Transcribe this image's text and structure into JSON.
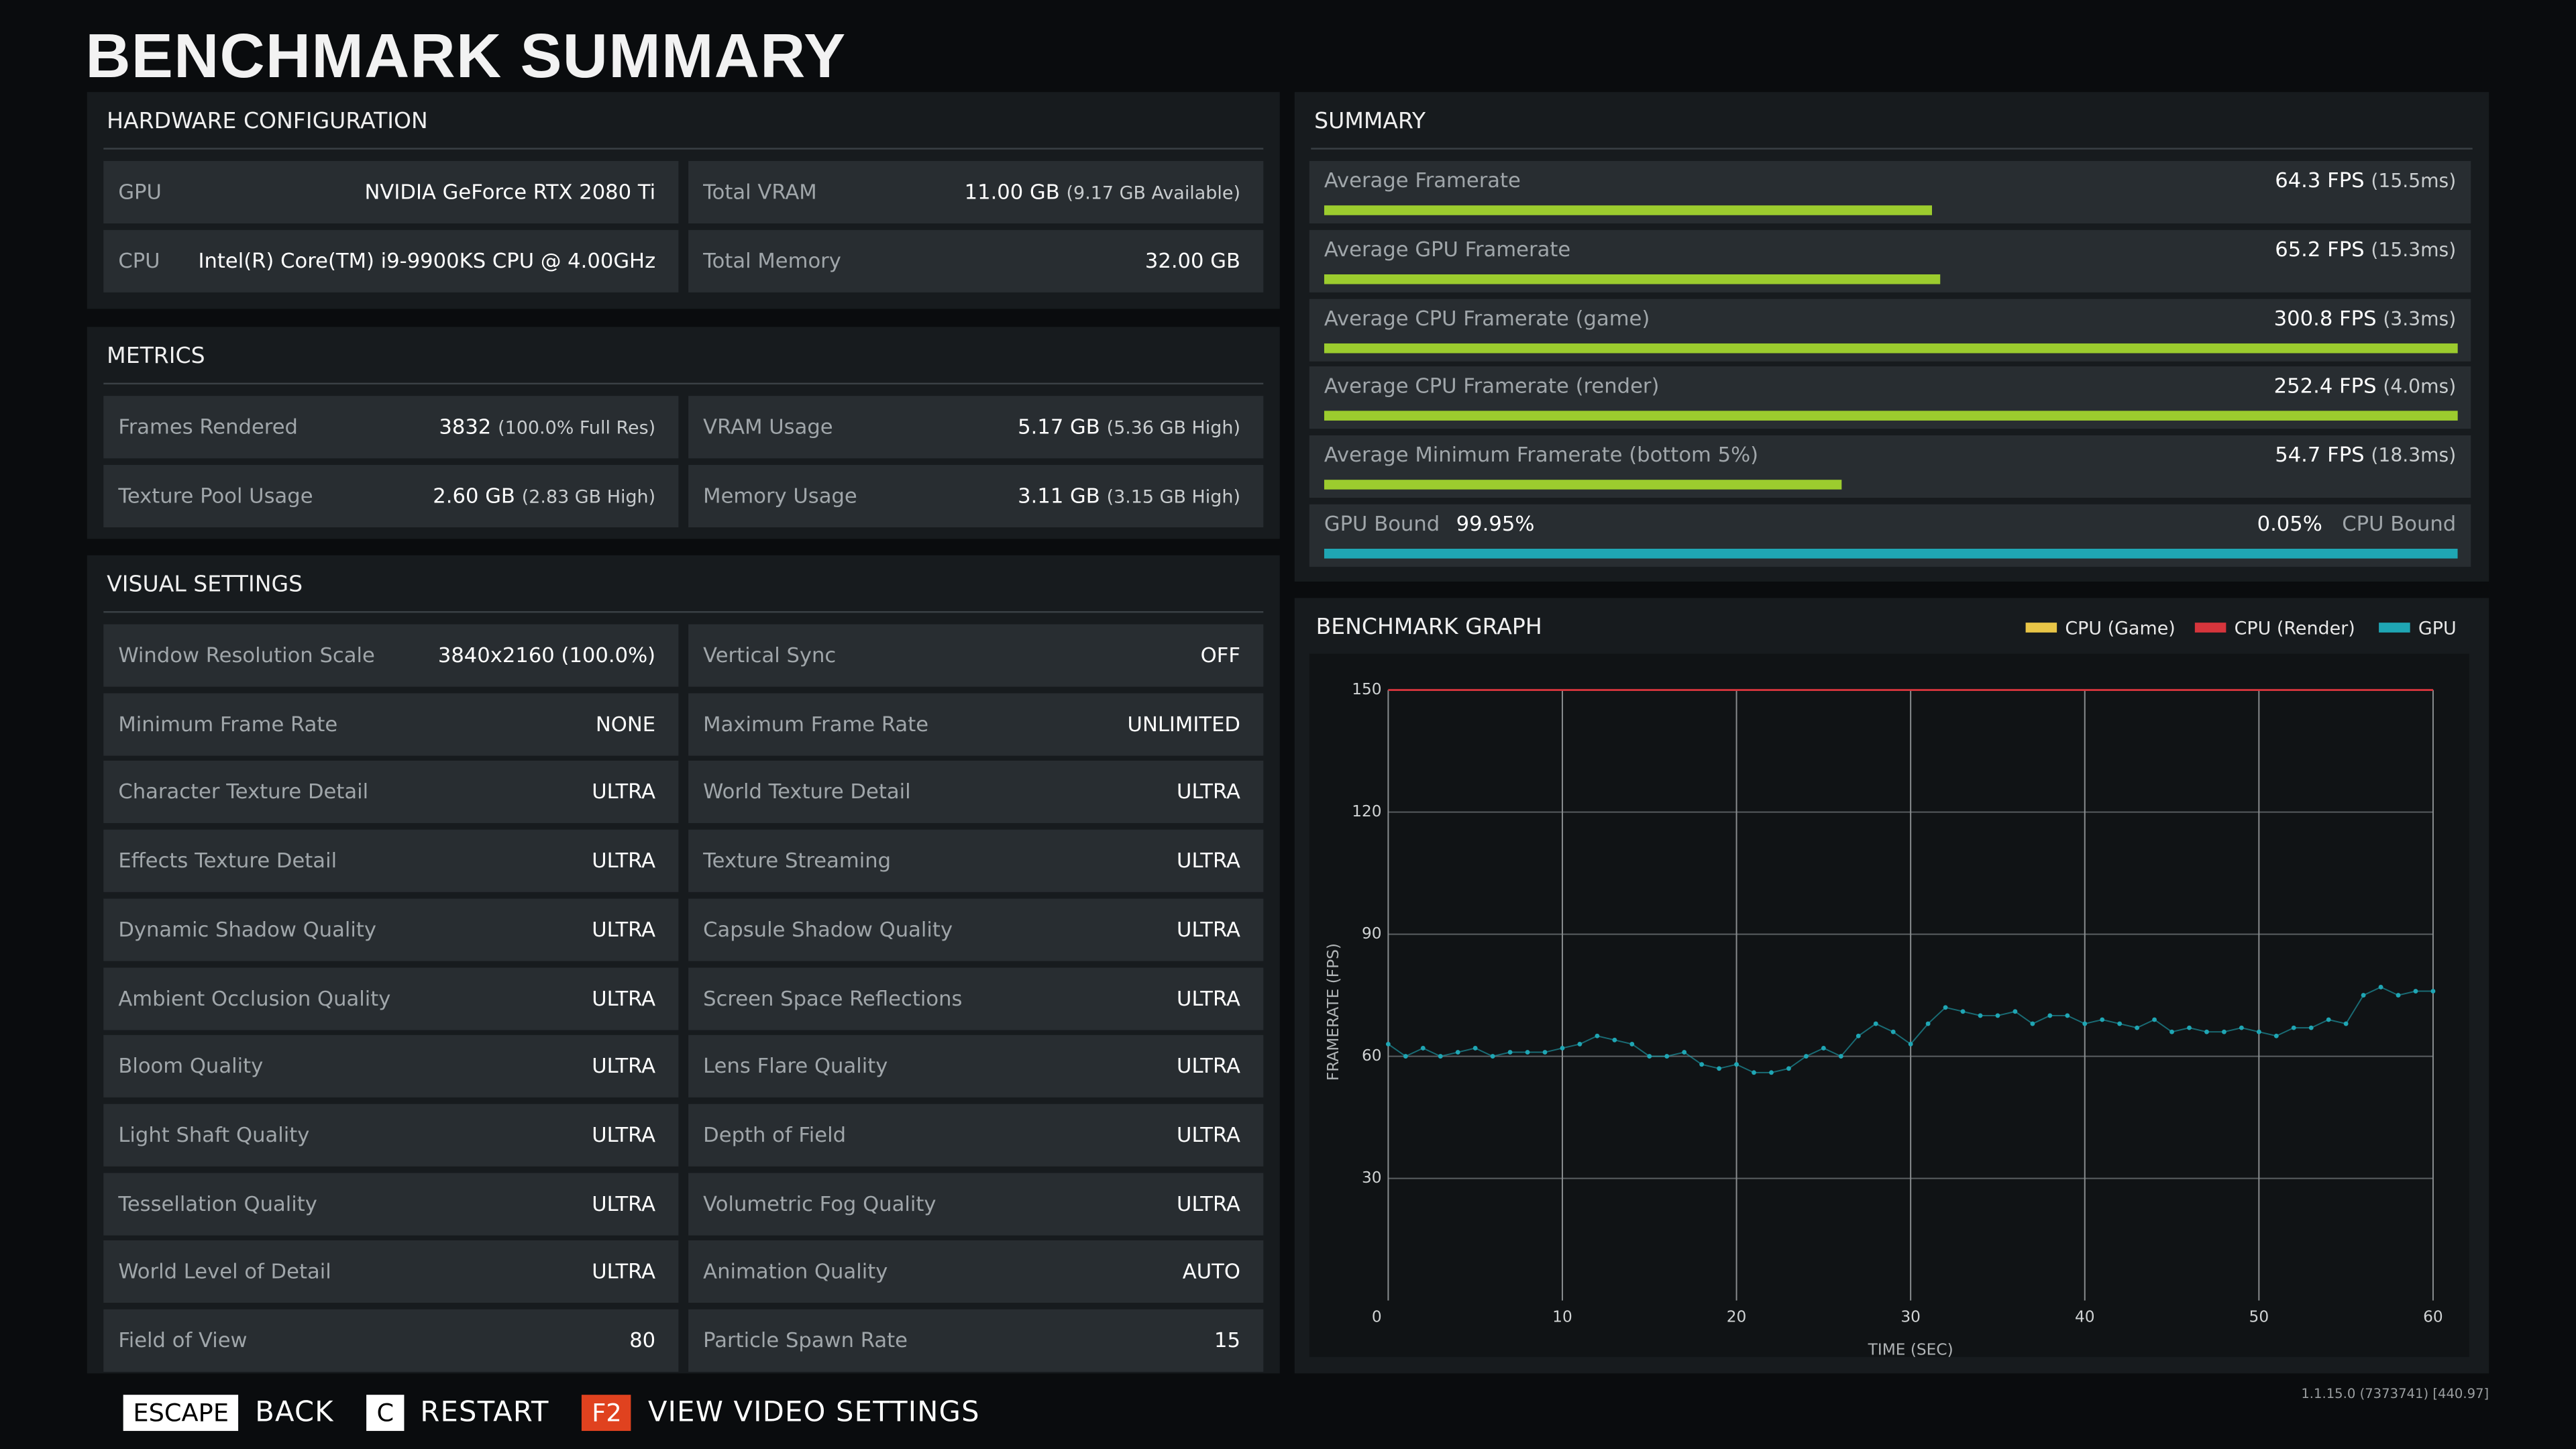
{
  "header": {
    "title": "BENCHMARK SUMMARY"
  },
  "hardware": {
    "title": "HARDWARE CONFIGURATION",
    "rows": [
      [
        {
          "label": "GPU",
          "value": "NVIDIA GeForce RTX 2080 Ti"
        },
        {
          "label": "Total VRAM",
          "value": "11.00 GB",
          "note": "(9.17 GB Available)"
        }
      ],
      [
        {
          "label": "CPU",
          "value": "Intel(R) Core(TM) i9-9900KS CPU @ 4.00GHz"
        },
        {
          "label": "Total Memory",
          "value": "32.00 GB"
        }
      ]
    ]
  },
  "metrics": {
    "title": "METRICS",
    "rows": [
      [
        {
          "label": "Frames Rendered",
          "value": "3832",
          "note": "(100.0% Full Res)"
        },
        {
          "label": "VRAM Usage",
          "value": "5.17 GB",
          "note": "(5.36 GB High)"
        }
      ],
      [
        {
          "label": "Texture Pool Usage",
          "value": "2.60 GB",
          "note": "(2.83 GB High)"
        },
        {
          "label": "Memory Usage",
          "value": "3.11 GB",
          "note": "(3.15 GB High)"
        }
      ]
    ]
  },
  "visual_settings": {
    "title": "VISUAL SETTINGS",
    "rows": [
      [
        {
          "label": "Window Resolution Scale",
          "value": "3840x2160 (100.0%)"
        },
        {
          "label": "Vertical Sync",
          "value": "OFF"
        }
      ],
      [
        {
          "label": "Minimum Frame Rate",
          "value": "NONE"
        },
        {
          "label": "Maximum Frame Rate",
          "value": "UNLIMITED"
        }
      ],
      [
        {
          "label": "Character Texture Detail",
          "value": "ULTRA"
        },
        {
          "label": "World Texture Detail",
          "value": "ULTRA"
        }
      ],
      [
        {
          "label": "Effects Texture Detail",
          "value": "ULTRA"
        },
        {
          "label": "Texture Streaming",
          "value": "ULTRA"
        }
      ],
      [
        {
          "label": "Dynamic Shadow Quality",
          "value": "ULTRA"
        },
        {
          "label": "Capsule Shadow Quality",
          "value": "ULTRA"
        }
      ],
      [
        {
          "label": "Ambient Occlusion Quality",
          "value": "ULTRA"
        },
        {
          "label": "Screen Space Reflections",
          "value": "ULTRA"
        }
      ],
      [
        {
          "label": "Bloom Quality",
          "value": "ULTRA"
        },
        {
          "label": "Lens Flare Quality",
          "value": "ULTRA"
        }
      ],
      [
        {
          "label": "Light Shaft Quality",
          "value": "ULTRA"
        },
        {
          "label": "Depth of Field",
          "value": "ULTRA"
        }
      ],
      [
        {
          "label": "Tessellation Quality",
          "value": "ULTRA"
        },
        {
          "label": "Volumetric Fog Quality",
          "value": "ULTRA"
        }
      ],
      [
        {
          "label": "World Level of Detail",
          "value": "ULTRA"
        },
        {
          "label": "Animation Quality",
          "value": "AUTO"
        }
      ],
      [
        {
          "label": "Field of View",
          "value": "80"
        },
        {
          "label": "Particle Spawn Rate",
          "value": "15"
        }
      ]
    ]
  },
  "summary": {
    "title": "SUMMARY",
    "bar_max": 120,
    "bar_color": "#9ccc2e",
    "items": [
      {
        "label": "Average Framerate",
        "fps": 64.3,
        "fps_label": "64.3 FPS",
        "ms_label": "(15.5ms)"
      },
      {
        "label": "Average GPU Framerate",
        "fps": 65.2,
        "fps_label": "65.2 FPS",
        "ms_label": "(15.3ms)"
      },
      {
        "label": "Average CPU Framerate (game)",
        "fps": 300.8,
        "fps_label": "300.8 FPS",
        "ms_label": "(3.3ms)"
      },
      {
        "label": "Average CPU Framerate (render)",
        "fps": 252.4,
        "fps_label": "252.4 FPS",
        "ms_label": "(4.0ms)"
      },
      {
        "label": "Average Minimum Framerate (bottom 5%)",
        "fps": 54.7,
        "fps_label": "54.7 FPS",
        "ms_label": "(18.3ms)"
      }
    ],
    "bound": {
      "gpu_label": "GPU Bound",
      "gpu_value": 99.95,
      "gpu_value_label": "99.95%",
      "cpu_value": 0.05,
      "cpu_value_label": "0.05%",
      "cpu_label": "CPU Bound",
      "color": "#1fa6b4"
    }
  },
  "chart_data": {
    "type": "scatter",
    "title": "BENCHMARK GRAPH",
    "xlabel": "TIME (SEC)",
    "ylabel": "FRAMERATE (FPS)",
    "x": [
      0,
      1,
      2,
      3,
      4,
      5,
      6,
      7,
      8,
      9,
      10,
      11,
      12,
      13,
      14,
      15,
      16,
      17,
      18,
      19,
      20,
      21,
      22,
      23,
      24,
      25,
      26,
      27,
      28,
      29,
      30,
      31,
      32,
      33,
      34,
      35,
      36,
      37,
      38,
      39,
      40,
      41,
      42,
      43,
      44,
      45,
      46,
      47,
      48,
      49,
      50,
      51,
      52,
      53,
      54,
      55,
      56,
      57,
      58,
      59,
      60
    ],
    "series": [
      {
        "name": "CPU (Game)",
        "color": "#e8c547",
        "values": [
          null,
          null,
          null,
          null,
          null,
          null,
          null,
          null,
          null,
          null,
          null,
          null,
          null,
          null,
          null,
          null,
          null,
          null,
          null,
          null,
          null,
          null,
          null,
          null,
          null,
          null,
          null,
          null,
          null,
          null,
          null,
          null,
          null,
          null,
          null,
          null,
          null,
          null,
          null,
          null,
          null,
          null,
          null,
          null,
          null,
          null,
          null,
          null,
          null,
          null,
          null,
          null,
          null,
          null,
          null,
          null,
          null,
          null,
          null,
          null,
          null
        ]
      },
      {
        "name": "CPU (Render)",
        "color": "#d6353c",
        "values": [
          150,
          150,
          150,
          150,
          150,
          150,
          150,
          150,
          150,
          150,
          150,
          150,
          150,
          150,
          150,
          150,
          150,
          150,
          150,
          150,
          150,
          150,
          150,
          150,
          150,
          150,
          150,
          150,
          150,
          150,
          150,
          150,
          150,
          150,
          150,
          150,
          150,
          150,
          150,
          150,
          150,
          150,
          150,
          150,
          150,
          150,
          150,
          150,
          150,
          150,
          150,
          150,
          150,
          150,
          150,
          150,
          150,
          150,
          150,
          150,
          150
        ]
      },
      {
        "name": "GPU",
        "color": "#1fa6b4",
        "values": [
          63,
          60,
          62,
          60,
          61,
          62,
          60,
          61,
          61,
          61,
          62,
          63,
          65,
          64,
          63,
          60,
          60,
          61,
          58,
          57,
          58,
          56,
          56,
          57,
          60,
          62,
          60,
          65,
          68,
          66,
          63,
          68,
          72,
          71,
          70,
          70,
          71,
          68,
          70,
          70,
          68,
          69,
          68,
          67,
          69,
          66,
          67,
          66,
          66,
          67,
          66,
          65,
          67,
          67,
          69,
          68,
          75,
          77,
          75,
          76,
          76
        ]
      }
    ],
    "xlim": [
      0,
      60
    ],
    "xticks": [
      0,
      10,
      20,
      30,
      40,
      50,
      60
    ],
    "ylim": [
      0,
      150
    ],
    "yticks": [
      30,
      60,
      90,
      120,
      150
    ],
    "grid": true
  },
  "footer": {
    "keys": [
      {
        "key": "ESCAPE",
        "label": "BACK"
      },
      {
        "key": "C",
        "label": "RESTART"
      },
      {
        "key": "F2",
        "label": "VIEW VIDEO SETTINGS"
      }
    ],
    "version": "1.1.15.0 (7373741) [440.97]"
  }
}
